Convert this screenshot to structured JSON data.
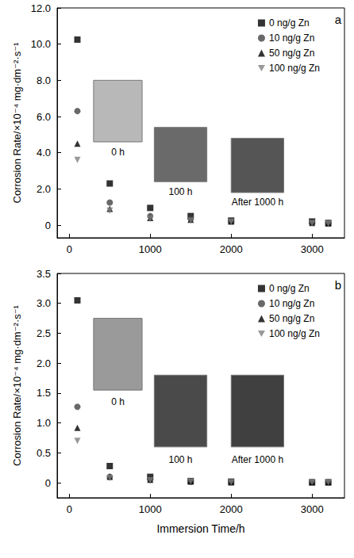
{
  "chart_data": [
    {
      "type": "scatter",
      "panel": "a",
      "y_label": "Corrosion Rate/×10⁻⁴ mg·dm⁻²·s⁻¹",
      "x": [
        100,
        500,
        1000,
        1500,
        2000,
        3000,
        3200
      ],
      "series": [
        {
          "name": "0 ng/g Zn",
          "color": "#000000",
          "marker": "square",
          "values": [
            10.25,
            2.3,
            0.95,
            0.5,
            0.25,
            0.2,
            0.12
          ]
        },
        {
          "name": "10 ng/g Zn",
          "color": "#444444",
          "marker": "circle",
          "values": [
            6.3,
            1.25,
            0.5,
            0.35,
            0.22,
            0.15,
            0.1
          ]
        },
        {
          "name": "50 ng/g Zn",
          "color": "#000000",
          "marker": "triangle",
          "values": [
            4.5,
            0.9,
            0.4,
            0.3,
            0.2,
            0.12,
            0.1
          ]
        },
        {
          "name": "100 ng/g Zn",
          "color": "#808080",
          "marker": "triangle_down",
          "values": [
            3.6,
            0.8,
            0.35,
            0.25,
            0.18,
            0.1,
            0.08
          ]
        }
      ],
      "xlim": [
        -150,
        3400
      ],
      "xticks": [
        0,
        1000,
        2000,
        3000
      ],
      "ylim": [
        -0.7,
        12
      ],
      "yticks": [
        0,
        {
          "value": 2,
          "label": "2.0"
        },
        {
          "value": 4,
          "label": "4.0"
        },
        {
          "value": 6,
          "label": "6.0"
        },
        {
          "value": 8,
          "label": "8.0"
        },
        {
          "value": 10,
          "label": "10.0"
        },
        {
          "value": 12,
          "label": "12.0"
        }
      ],
      "annotations": [
        "0 h",
        "100 h",
        "After 1000 h"
      ],
      "legend": "upper right",
      "grid": false
    },
    {
      "type": "scatter",
      "panel": "b",
      "y_label": "Corrosion Rate/×10⁻⁴ mg·dm⁻²·s⁻¹",
      "x_label": "Immersion Time/h",
      "x": [
        100,
        500,
        1000,
        1500,
        2000,
        3000,
        3200
      ],
      "series": [
        {
          "name": "0 ng/g Zn",
          "color": "#000000",
          "marker": "square",
          "values": [
            3.05,
            0.28,
            0.1,
            0.03,
            0.02,
            0.01,
            0.01
          ]
        },
        {
          "name": "10 ng/g Zn",
          "color": "#444444",
          "marker": "circle",
          "values": [
            1.27,
            0.1,
            0.05,
            0.02,
            0.01,
            0.01,
            0.01
          ]
        },
        {
          "name": "50 ng/g Zn",
          "color": "#000000",
          "marker": "triangle",
          "values": [
            0.92,
            0.1,
            0.05,
            0.02,
            0.01,
            0.01,
            0.01
          ]
        },
        {
          "name": "100 ng/g Zn",
          "color": "#808080",
          "marker": "triangle_down",
          "values": [
            0.7,
            0.08,
            0.04,
            0.02,
            0.01,
            0.01,
            0.01
          ]
        }
      ],
      "xlim": [
        -150,
        3400
      ],
      "xticks": [
        0,
        1000,
        2000,
        3000
      ],
      "ylim": [
        -0.25,
        3.5
      ],
      "yticks": [
        0,
        0.5,
        {
          "value": 1,
          "label": "1.0"
        },
        1.5,
        {
          "value": 2,
          "label": "2.0"
        },
        2.5,
        {
          "value": 3,
          "label": "3.0"
        },
        3.5
      ],
      "annotations": [
        "0 h",
        "100 h",
        "After 1000 h"
      ],
      "legend": "upper right",
      "grid": false
    }
  ]
}
